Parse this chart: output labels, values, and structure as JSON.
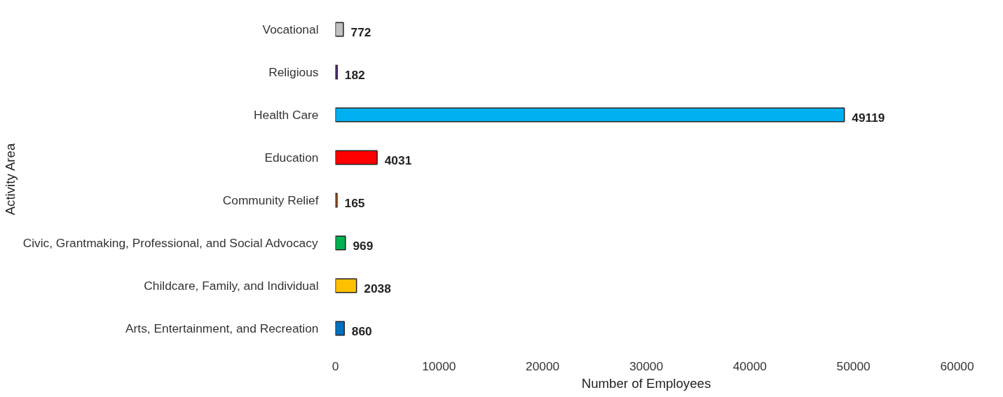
{
  "chart_data": {
    "type": "bar",
    "orientation": "horizontal",
    "xlabel": "Number of Employees",
    "ylabel": "Activity Area",
    "categories": [
      "Vocational",
      "Religious",
      "Health Care",
      "Education",
      "Community Relief",
      "Civic, Grantmaking, Professional, and Social Advocacy",
      "Childcare, Family, and Individual",
      "Arts, Entertainment, and Recreation"
    ],
    "values": [
      772,
      182,
      49119,
      4031,
      165,
      969,
      2038,
      860
    ],
    "colors": [
      "#c0c0c0",
      "#7030a0",
      "#00b0f0",
      "#ff0000",
      "#ff6600",
      "#00b050",
      "#ffc000",
      "#0070c0"
    ],
    "data_labels": true,
    "xlim": [
      0,
      60000
    ],
    "xticks": [
      0,
      10000,
      20000,
      30000,
      40000,
      50000,
      60000
    ],
    "grid": false
  }
}
